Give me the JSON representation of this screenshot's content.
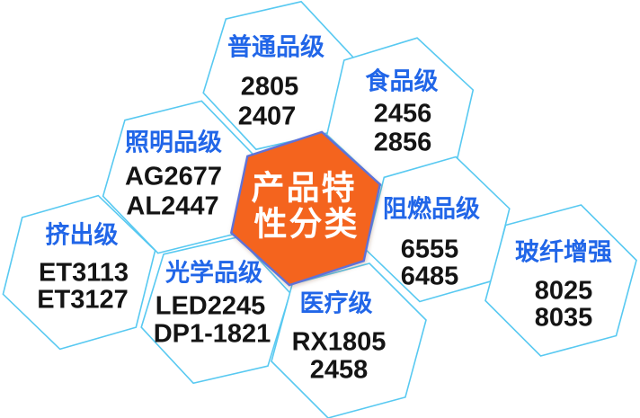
{
  "title": {
    "lines": [
      "产品特",
      "性分类"
    ]
  },
  "colors": {
    "accent_orange": "#f4641e",
    "hex_border": "#58c9f1",
    "center_border": "#5e72d9",
    "label_blue": "#2166e8",
    "value_black": "#141414"
  },
  "groups": [
    {
      "id": "ordinary",
      "label": "普通品级",
      "values": [
        "2805",
        "2407"
      ]
    },
    {
      "id": "food",
      "label": "食品级",
      "values": [
        "2456",
        "2856"
      ]
    },
    {
      "id": "lighting",
      "label": "照明品级",
      "values": [
        "AG2677",
        "AL2447"
      ]
    },
    {
      "id": "extrusion",
      "label": "挤出级",
      "values": [
        "ET3113",
        "ET3127"
      ]
    },
    {
      "id": "optical",
      "label": "光学品级",
      "values": [
        "LED2245",
        "DP1-1821"
      ]
    },
    {
      "id": "medical",
      "label": "医疗级",
      "values": [
        "RX1805",
        "2458"
      ]
    },
    {
      "id": "flame",
      "label": "阻燃品级",
      "values": [
        "6555",
        "6485"
      ]
    },
    {
      "id": "glass",
      "label": "玻纤增强",
      "values": [
        "8025",
        "8035"
      ]
    }
  ]
}
